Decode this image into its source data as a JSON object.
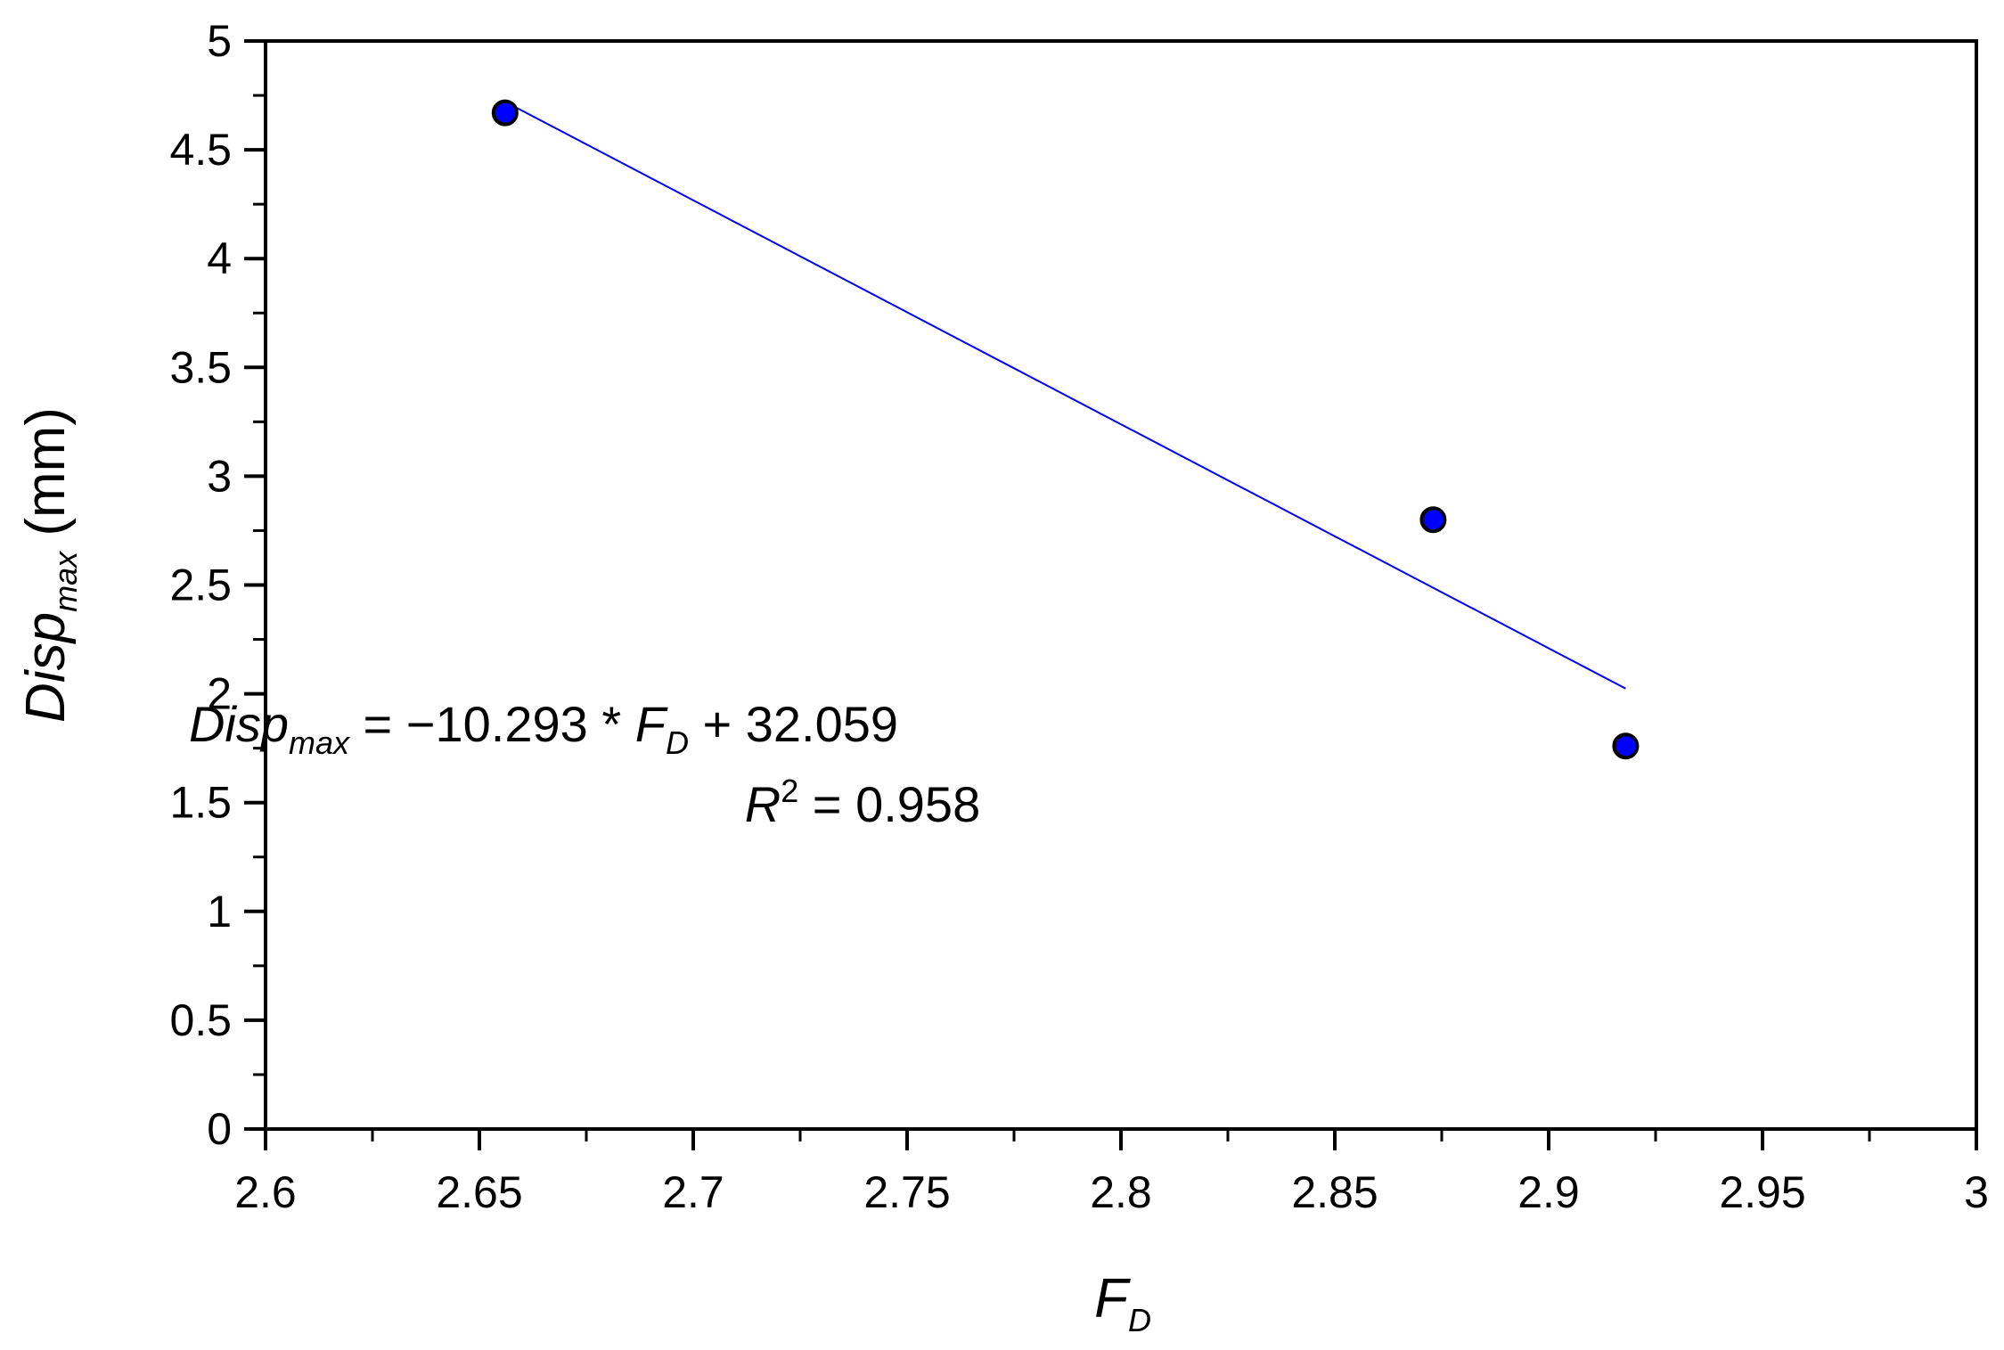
{
  "chart_data": {
    "type": "scatter",
    "x": [
      2.656,
      2.873,
      2.918
    ],
    "y": [
      4.67,
      2.8,
      1.76
    ],
    "xlim": [
      2.6,
      3.0
    ],
    "ylim": [
      0,
      5
    ],
    "x_ticks": [
      "2.6",
      "2.65",
      "2.7",
      "2.75",
      "2.8",
      "2.85",
      "2.9",
      "2.95",
      "3"
    ],
    "y_ticks": [
      "0",
      "0.5",
      "1",
      "1.5",
      "2",
      "2.5",
      "3",
      "3.5",
      "4",
      "4.5",
      "5"
    ],
    "xlabel": {
      "main": "F",
      "sub": "D"
    },
    "ylabel": {
      "main": "Disp",
      "sub": "max",
      "unit": "(mm)"
    },
    "fit": {
      "slope": -10.293,
      "intercept": 32.059,
      "x_range": [
        2.656,
        2.918
      ],
      "color": "#0000ff"
    },
    "annotation": {
      "eq_lhs": "Disp",
      "eq_lhs_sub": "max",
      "eq_mid": " = −",
      "eq_slope": "10.293 * ",
      "eq_var": "F",
      "eq_var_sub": "D",
      "eq_rhs": " + 32.059",
      "r2_sym": "R",
      "r2_sup": "2",
      "r2_val": " = 0.958"
    },
    "marker_color": "#0000ff",
    "grid": false,
    "legend": "none"
  }
}
